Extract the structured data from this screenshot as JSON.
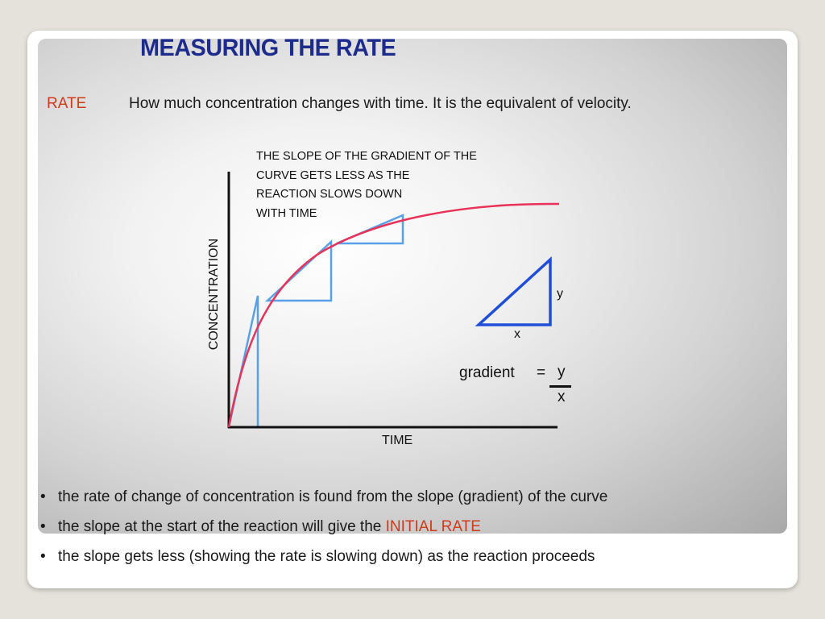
{
  "slide": {
    "title": "MEASURING THE RATE",
    "rate_term": "RATE",
    "rate_definition": "How much concentration changes with time. It is the equivalent of velocity."
  },
  "diagram": {
    "annotation_lines": [
      "THE SLOPE OF THE GRADIENT OF THE",
      "CURVE GETS LESS AS THE",
      "REACTION SLOWS DOWN",
      "WITH TIME"
    ],
    "y_axis_label": "CONCENTRATION",
    "x_axis_label": "TIME",
    "triangle_y_label": "y",
    "triangle_x_label": "x",
    "gradient_word": "gradient",
    "gradient_equals": "=",
    "gradient_numerator": "y",
    "gradient_denominator": "x",
    "colors": {
      "curve": "#e8325a",
      "tangent_triangles": "#5aa0e6",
      "example_triangle": "#1f4fd8",
      "axes": "#111111"
    }
  },
  "bullets": [
    {
      "text": "the rate of change of concentration is found from the slope (gradient) of the curve",
      "highlight": ""
    },
    {
      "text": "the slope at the start of the reaction will give the ",
      "highlight": "INITIAL RATE"
    },
    {
      "text": "the slope gets less (showing the rate is slowing down) as the reaction proceeds",
      "highlight": ""
    }
  ],
  "bullet_glyph": "•",
  "highlight_color": "#d03a1a"
}
